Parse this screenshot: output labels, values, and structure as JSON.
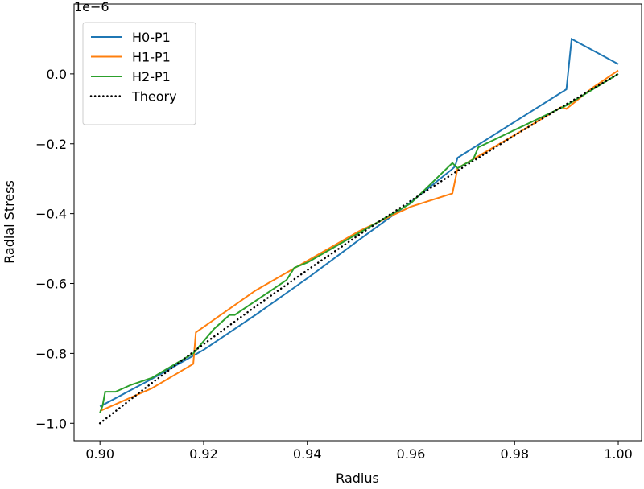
{
  "chart_data": {
    "type": "line",
    "title": "",
    "xlabel": "Radius",
    "ylabel": "Radial Stress",
    "y_offset_label": "1e−6",
    "xlim": [
      0.895,
      1.0045
    ],
    "ylim": [
      -1.05,
      0.2
    ],
    "xticks": [
      0.9,
      0.92,
      0.94,
      0.96,
      0.98,
      1.0
    ],
    "xtick_labels": [
      "0.90",
      "0.92",
      "0.94",
      "0.96",
      "0.98",
      "1.00"
    ],
    "yticks": [
      0.0,
      -0.2,
      -0.4,
      -0.6,
      -0.8,
      -1.0
    ],
    "ytick_labels": [
      "0.0",
      "−0.2",
      "−0.4",
      "−0.6",
      "−0.8",
      "−1.0"
    ],
    "legend_placement": "top-left",
    "series": [
      {
        "name": "H0-P1",
        "color": "#1f77b4",
        "style": "solid",
        "x": [
          0.9,
          0.91,
          0.92,
          0.93,
          0.94,
          0.95,
          0.96,
          0.968,
          0.9685,
          0.969,
          0.99,
          0.991,
          1.0
        ],
        "y": [
          -0.952,
          -0.873,
          -0.79,
          -0.69,
          -0.585,
          -0.475,
          -0.367,
          -0.272,
          -0.265,
          -0.24,
          -0.044,
          0.1,
          0.028
        ]
      },
      {
        "name": "H1-P1",
        "color": "#ff7f0e",
        "style": "solid",
        "x": [
          0.9,
          0.91,
          0.918,
          0.9185,
          0.93,
          0.94,
          0.95,
          0.96,
          0.968,
          0.969,
          0.98,
          0.989,
          0.99,
          0.995,
          1.0
        ],
        "y": [
          -0.965,
          -0.9,
          -0.83,
          -0.74,
          -0.62,
          -0.535,
          -0.45,
          -0.38,
          -0.342,
          -0.27,
          -0.175,
          -0.095,
          -0.1,
          -0.04,
          0.01
        ]
      },
      {
        "name": "H2-P1",
        "color": "#2ca02c",
        "style": "solid",
        "x": [
          0.9,
          0.9005,
          0.901,
          0.903,
          0.906,
          0.91,
          0.918,
          0.922,
          0.925,
          0.926,
          0.936,
          0.9375,
          0.94,
          0.96,
          0.968,
          0.969,
          0.972,
          0.973,
          0.99,
          1.0
        ],
        "y": [
          -0.97,
          -0.95,
          -0.91,
          -0.91,
          -0.89,
          -0.87,
          -0.8,
          -0.73,
          -0.69,
          -0.69,
          -0.59,
          -0.555,
          -0.54,
          -0.37,
          -0.255,
          -0.27,
          -0.245,
          -0.21,
          -0.09,
          0.0
        ]
      },
      {
        "name": "Theory",
        "color": "#000000",
        "style": "dotted",
        "x": [
          0.9,
          0.91,
          0.92,
          0.93,
          0.94,
          0.95,
          0.96,
          0.97,
          0.98,
          0.99,
          1.0
        ],
        "y": [
          -1.0,
          -0.8848,
          -0.7736,
          -0.6659,
          -0.5616,
          -0.4605,
          -0.3628,
          -0.2678,
          -0.1758,
          -0.0866,
          0.0
        ]
      }
    ]
  }
}
